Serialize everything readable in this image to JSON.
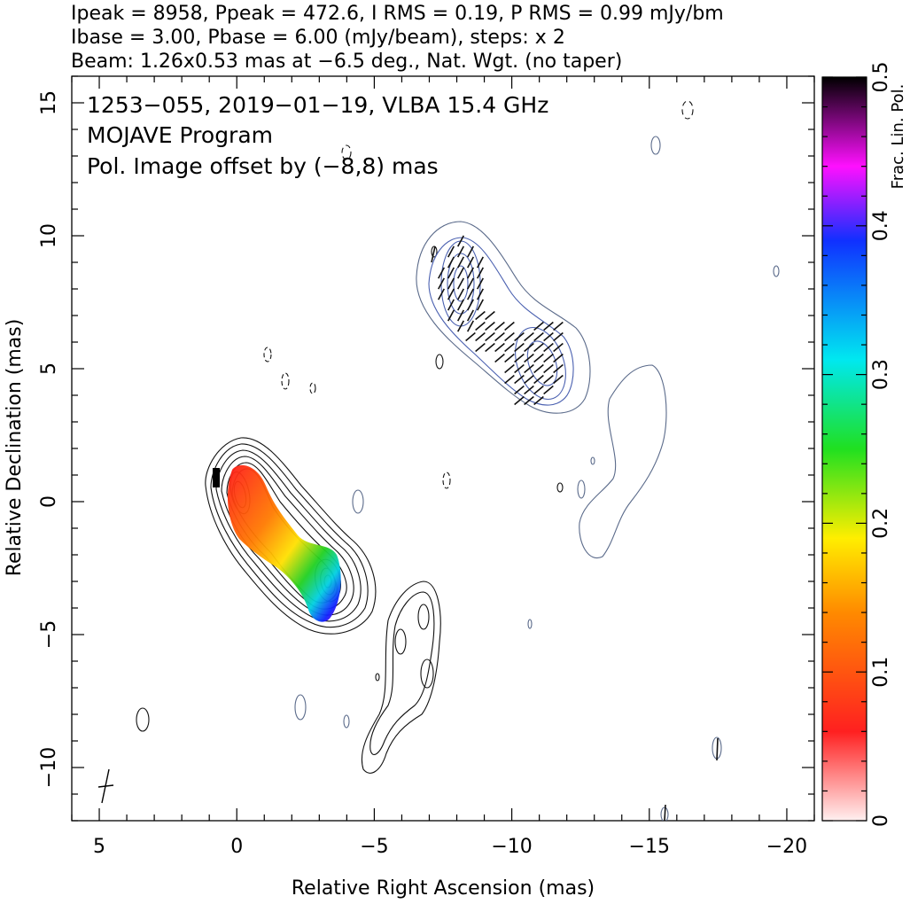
{
  "header": {
    "line1": "Ipeak = 8958, Ppeak = 472.6, I RMS = 0.19, P RMS = 0.99 mJy/bm",
    "line2": "Ibase = 3.00, Pbase = 6.00 (mJy/beam), steps: x 2",
    "line3": "Beam: 1.26x0.53 mas at −6.5 deg., Nat. Wgt. (no taper)"
  },
  "annotations": {
    "source": "1253−055, 2019−01−19, VLBA 15.4 GHz",
    "program": "MOJAVE Program",
    "offset": "Pol. Image offset by (−8,8) mas",
    "offset_color": "#5b7fd6"
  },
  "chart_data": {
    "type": "contour",
    "xlabel": "Relative Right Ascension (mas)",
    "ylabel": "Relative Declination (mas)",
    "xlim": [
      6,
      -21
    ],
    "ylim": [
      -12,
      16
    ],
    "xticks": [
      5,
      0,
      -5,
      -10,
      -15,
      -20
    ],
    "xtick_labels": [
      "5",
      "0",
      "−5",
      "−10",
      "−15",
      "−20"
    ],
    "yticks": [
      15,
      10,
      5,
      0,
      -5,
      -10
    ],
    "ytick_labels": [
      "15",
      "10",
      "5",
      "0",
      "−5",
      "−10"
    ],
    "colorbar": {
      "label": "Frac. Lin. Pol.",
      "range": [
        0,
        0.5
      ],
      "ticks": [
        0,
        0.1,
        0.2,
        0.3,
        0.4,
        0.5
      ],
      "tick_labels": [
        "0",
        "0.1",
        "0.2",
        "0.3",
        "0.4",
        "0.5"
      ]
    },
    "total_intensity_peak_mJy": 8958,
    "pol_peak_mJy": 472.6,
    "contour_base_mJy": 3.0,
    "contour_step_factor": 2,
    "beam": {
      "major_mas": 1.26,
      "minor_mas": 0.53,
      "pa_deg": -6.5
    },
    "pol_image_offset_mas": [
      -8,
      8
    ]
  }
}
